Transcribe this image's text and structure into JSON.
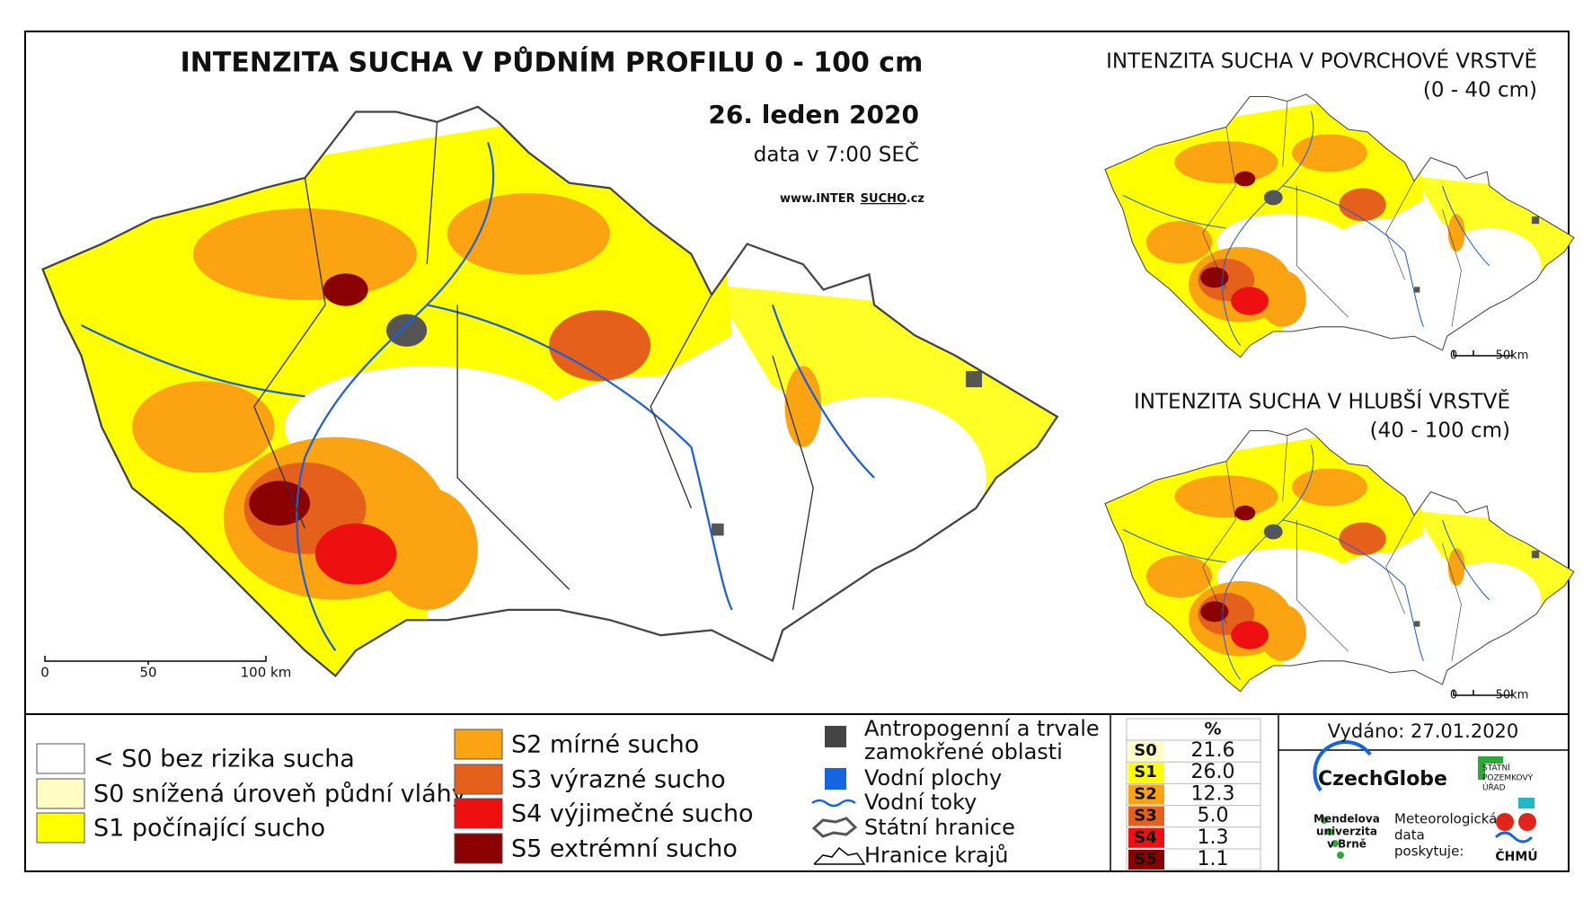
{
  "main_map": {
    "title": "INTENZITA SUCHA V PŮDNÍM PROFILU 0 - 100 cm",
    "date": "26. leden 2020",
    "data_time": "data v 7:00 SEČ",
    "website": {
      "prefix": "www.",
      "brand_a": "INTER",
      "brand_b": "SUCHO",
      "suffix": ".cz"
    },
    "scale": [
      "0",
      "50",
      "100 km"
    ]
  },
  "insets": [
    {
      "title": "INTENZITA SUCHA V POVRCHOVÉ VRSTVĚ",
      "subtitle": "(0 - 40 cm)",
      "scale": [
        "0",
        "50km"
      ]
    },
    {
      "title": "INTENZITA SUCHA V HLUBŠÍ VRSTVĚ",
      "subtitle": "(40 - 100 cm)",
      "scale": [
        "0",
        "50km"
      ]
    }
  ],
  "legend": {
    "drought": [
      {
        "label": "< S0 bez rizika sucha",
        "color": "#ffffff"
      },
      {
        "label": "S0 snížená úroveň půdní vláhy",
        "color": "#fffcc4"
      },
      {
        "label": "S1 počínající sucho",
        "color": "#ffff00"
      },
      {
        "label": "S2 mírné sucho",
        "color": "#fca311"
      },
      {
        "label": "S3 výrazné sucho",
        "color": "#e5601a"
      },
      {
        "label": "S4 výjimečné sucho",
        "color": "#ee1010"
      },
      {
        "label": "S5 extrémní sucho",
        "color": "#8b0000"
      }
    ],
    "features": [
      {
        "label": [
          "Antropogenní a trvale",
          "zamokřené oblasti"
        ]
      },
      {
        "label": [
          "Vodní plochy"
        ]
      },
      {
        "label": [
          "Vodní toky"
        ]
      },
      {
        "label": [
          "Státní hranice"
        ]
      },
      {
        "label": [
          "Hranice krajů"
        ]
      }
    ]
  },
  "stats_table": {
    "header": "%",
    "rows": [
      {
        "class": "S0",
        "percent": "21.6",
        "color": "#fffcc4"
      },
      {
        "class": "S1",
        "percent": "26.0",
        "color": "#ffff00"
      },
      {
        "class": "S2",
        "percent": "12.3",
        "color": "#fca311"
      },
      {
        "class": "S3",
        "percent": "5.0",
        "color": "#e5601a"
      },
      {
        "class": "S4",
        "percent": "1.3",
        "color": "#ee1010"
      },
      {
        "class": "S5",
        "percent": "1.1",
        "color": "#8b0000"
      }
    ]
  },
  "issued": "Vydáno: 27.01.2020",
  "logos": {
    "czechglobe": "CzechGlobe",
    "spu": [
      "STÁTNÍ",
      "POZEMKOVÝ",
      "ÚŘAD"
    ],
    "mendelu": [
      "Mendelova",
      "univerzita",
      "v Brně"
    ],
    "provider": [
      "Meteorologická",
      "data",
      "poskytuje:"
    ],
    "chmu": "ČHMÚ"
  }
}
